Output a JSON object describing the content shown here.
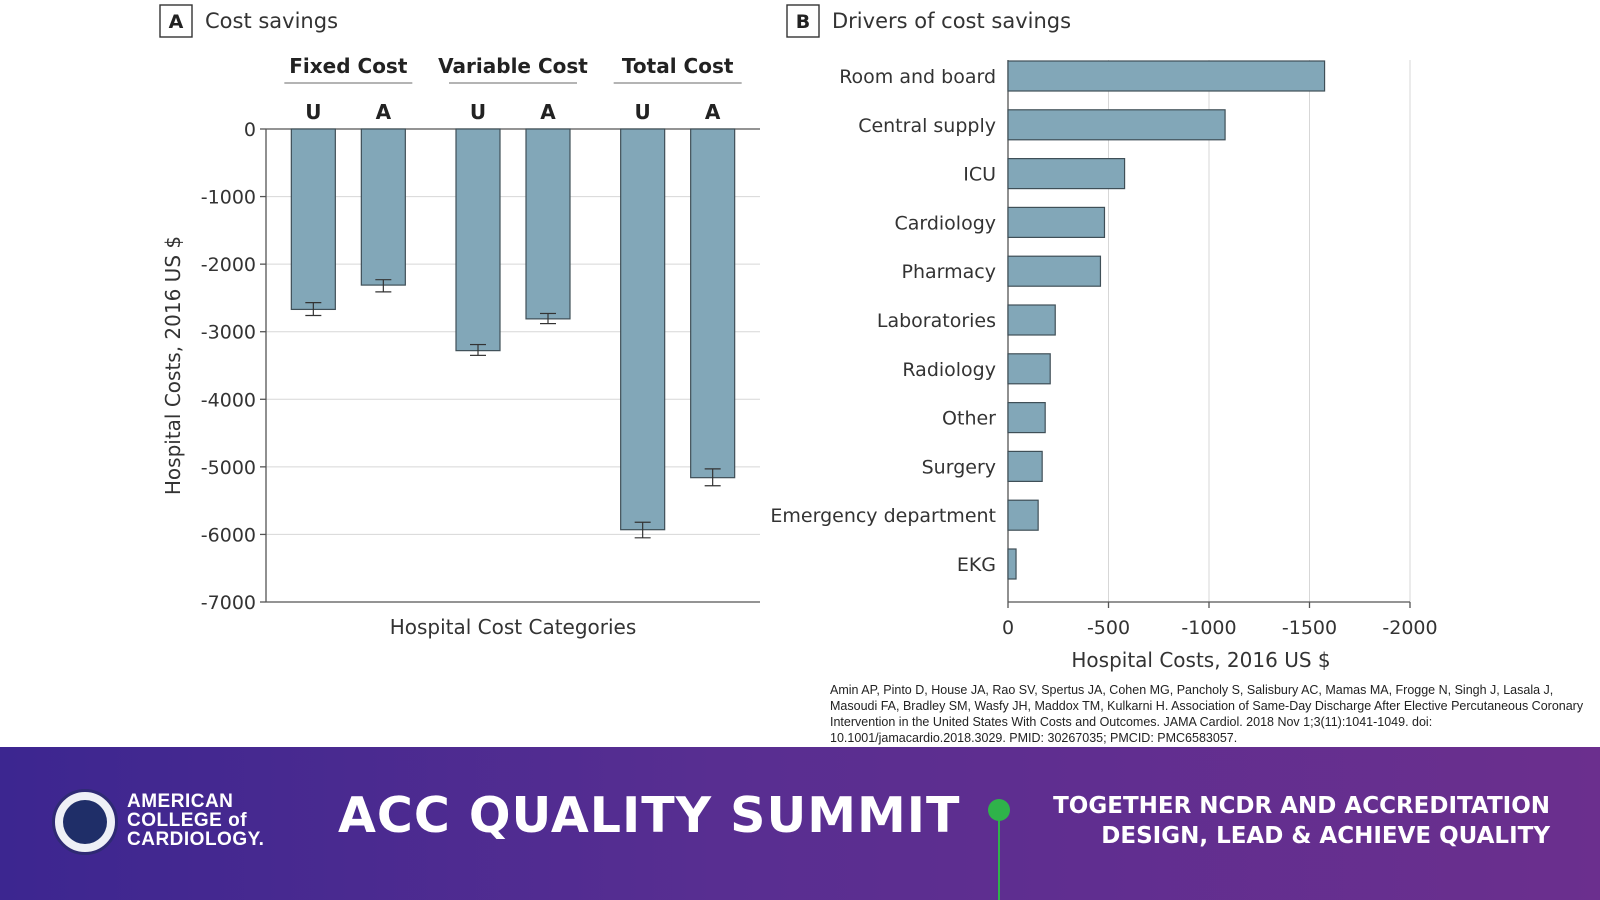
{
  "chart_data": [
    {
      "type": "bar",
      "panel_letter": "A",
      "title": "Cost savings",
      "groups": [
        "Fixed Cost",
        "Variable Cost",
        "Total Cost"
      ],
      "subcategories": [
        "U",
        "A"
      ],
      "bars": [
        {
          "group": "Fixed Cost",
          "sub": "U",
          "value": -2670,
          "err_low": -2760,
          "err_high": -2570
        },
        {
          "group": "Fixed Cost",
          "sub": "A",
          "value": -2310,
          "err_low": -2410,
          "err_high": -2230
        },
        {
          "group": "Variable Cost",
          "sub": "U",
          "value": -3280,
          "err_low": -3350,
          "err_high": -3190
        },
        {
          "group": "Variable Cost",
          "sub": "A",
          "value": -2810,
          "err_low": -2880,
          "err_high": -2730
        },
        {
          "group": "Total Cost",
          "sub": "U",
          "value": -5930,
          "err_low": -6050,
          "err_high": -5820
        },
        {
          "group": "Total Cost",
          "sub": "A",
          "value": -5160,
          "err_low": -5280,
          "err_high": -5030
        }
      ],
      "ylim": [
        -7000,
        0
      ],
      "yticks": [
        0,
        -1000,
        -2000,
        -3000,
        -4000,
        -5000,
        -6000,
        -7000
      ],
      "xlabel": "Hospital Cost Categories",
      "ylabel": "Hospital Costs, 2016 US $",
      "grid": true
    },
    {
      "type": "bar",
      "orientation": "horizontal",
      "panel_letter": "B",
      "title": "Drivers of cost savings",
      "categories": [
        "Room and board",
        "Central supply",
        "ICU",
        "Cardiology",
        "Pharmacy",
        "Laboratories",
        "Radiology",
        "Other",
        "Surgery",
        "Emergency department",
        "EKG"
      ],
      "values": [
        -1575,
        -1080,
        -580,
        -480,
        -460,
        -235,
        -210,
        -185,
        -170,
        -150,
        -40
      ],
      "xlim": [
        0,
        -2000
      ],
      "xticks": [
        0,
        -500,
        -1000,
        -1500,
        -2000
      ],
      "xlabel": "Hospital Costs, 2016 US $",
      "grid": true
    }
  ],
  "citation": "Amin AP, Pinto D, House JA, Rao SV, Spertus JA, Cohen MG, Pancholy S, Salisbury AC, Mamas MA, Frogge N, Singh J, Lasala J, Masoudi FA, Bradley SM, Wasfy JH, Maddox TM, Kulkarni H. Association of Same-Day Discharge After Elective Percutaneous Coronary Intervention in the United States With Costs and Outcomes. JAMA Cardiol. 2018 Nov 1;3(11):1041-1049. doi: 10.1001/jamacardio.2018.3029. PMID: 30267035; PMCID: PMC6583057.",
  "footer": {
    "logo_lines": [
      "AMERICAN",
      "COLLEGE of",
      "CARDIOLOGY."
    ],
    "event_title": "ACC QUALITY SUMMIT",
    "tagline_lines": [
      "TOGETHER NCDR AND ACCREDITATION",
      "DESIGN, LEAD & ACHIEVE QUALITY"
    ],
    "colors": {
      "gradient_start": "#3c2690",
      "gradient_end": "#6b2f8e",
      "accent": "#2fb34a"
    }
  }
}
